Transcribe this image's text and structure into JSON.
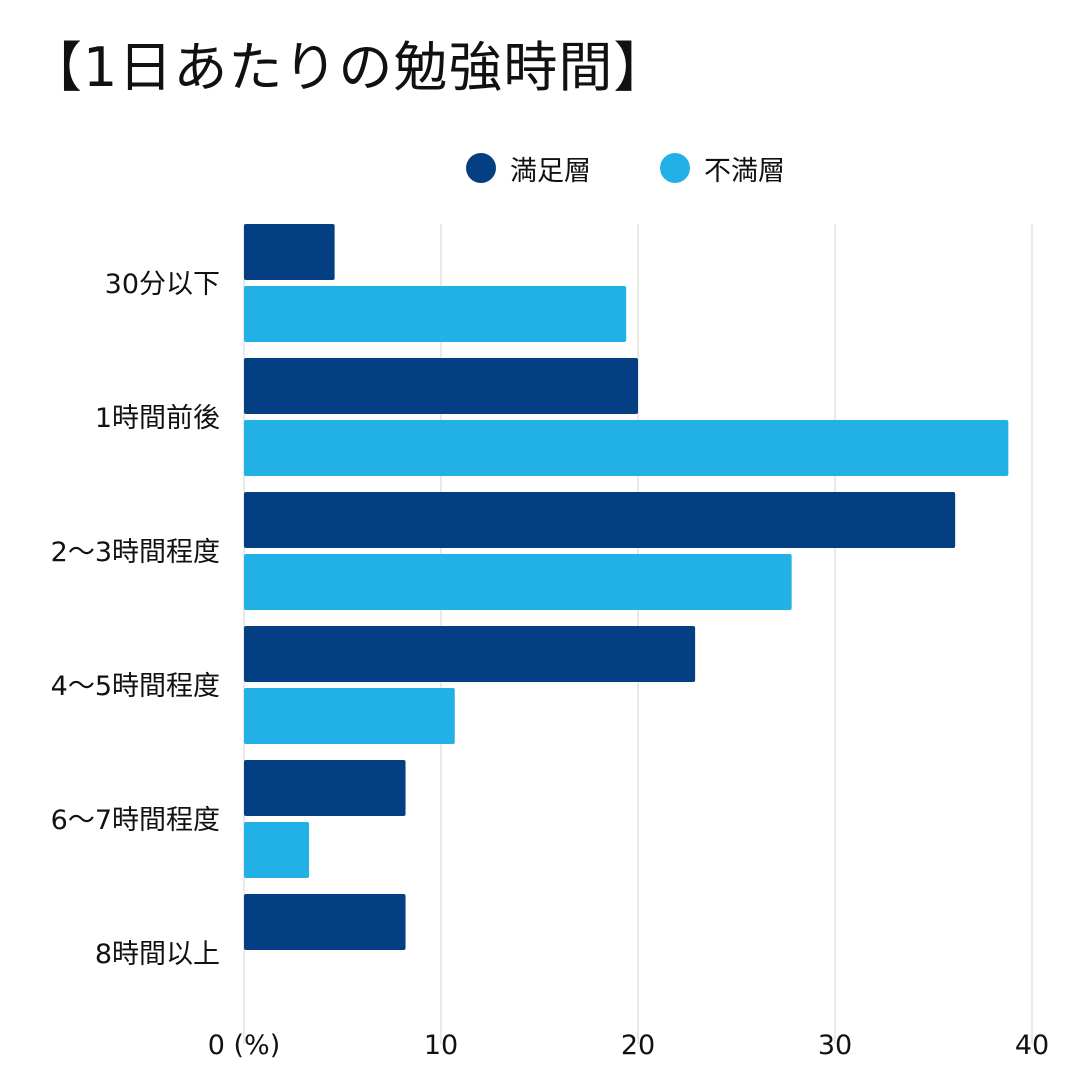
{
  "chart_data": {
    "type": "bar",
    "orientation": "horizontal",
    "title": "【1日あたりの勉強時間】",
    "categories": [
      "30分以下",
      "1時間前後",
      "2〜3時間程度",
      "4〜5時間程度",
      "6〜7時間程度",
      "8時間以上"
    ],
    "series": [
      {
        "name": "満足層",
        "color": "#043f84",
        "values": [
          4.6,
          20.0,
          36.1,
          22.9,
          8.2,
          8.2
        ]
      },
      {
        "name": "不満層",
        "color": "#22b1e6",
        "values": [
          19.4,
          38.8,
          27.8,
          10.7,
          3.3,
          null
        ]
      }
    ],
    "xticks": [
      "0 (%)",
      "10",
      "20",
      "30",
      "40"
    ],
    "xlim": [
      0,
      40
    ],
    "grid": true,
    "legend_position": "top-right"
  }
}
